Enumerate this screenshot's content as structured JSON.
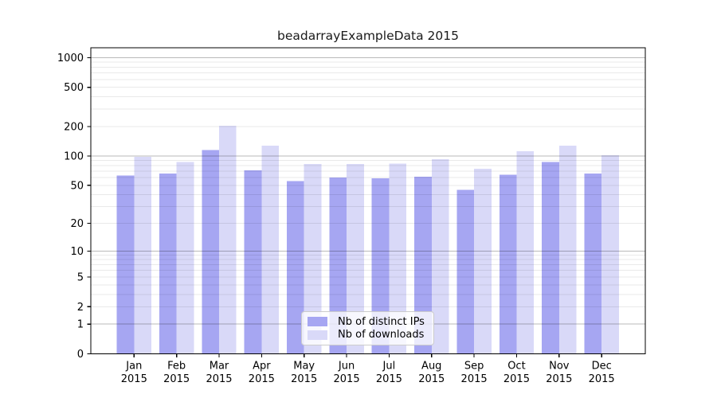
{
  "figure": {
    "background": "#ffffff"
  },
  "chart_data": {
    "type": "bar",
    "title": "beadarrayExampleData 2015",
    "x_year": "2015",
    "categories": [
      "Jan",
      "Feb",
      "Mar",
      "Apr",
      "May",
      "Jun",
      "Jul",
      "Aug",
      "Sep",
      "Oct",
      "Nov",
      "Dec"
    ],
    "series": [
      {
        "name": "Nb of distinct IPs",
        "color": "#a6a6f2",
        "values": [
          63,
          66,
          115,
          71,
          55,
          60,
          59,
          61,
          45,
          64,
          87,
          66
        ]
      },
      {
        "name": "Nb of downloads",
        "color": "#d9d9f8",
        "values": [
          98,
          87,
          204,
          127,
          83,
          83,
          84,
          93,
          74,
          112,
          128,
          102
        ]
      }
    ],
    "y_scale": "log1p",
    "y_ticks": [
      0,
      1,
      2,
      5,
      10,
      20,
      50,
      100,
      200,
      500,
      1000
    ],
    "ylim": [
      0,
      1260
    ],
    "grid": "horizontal major and minor log gridlines drawn over bars",
    "legend_position": "inside bottom-center",
    "colors": {
      "major_grid": "rgba(0,0,0,0.27)",
      "minor_grid": "rgba(0,0,0,0.085)",
      "spine": "#000000"
    }
  }
}
